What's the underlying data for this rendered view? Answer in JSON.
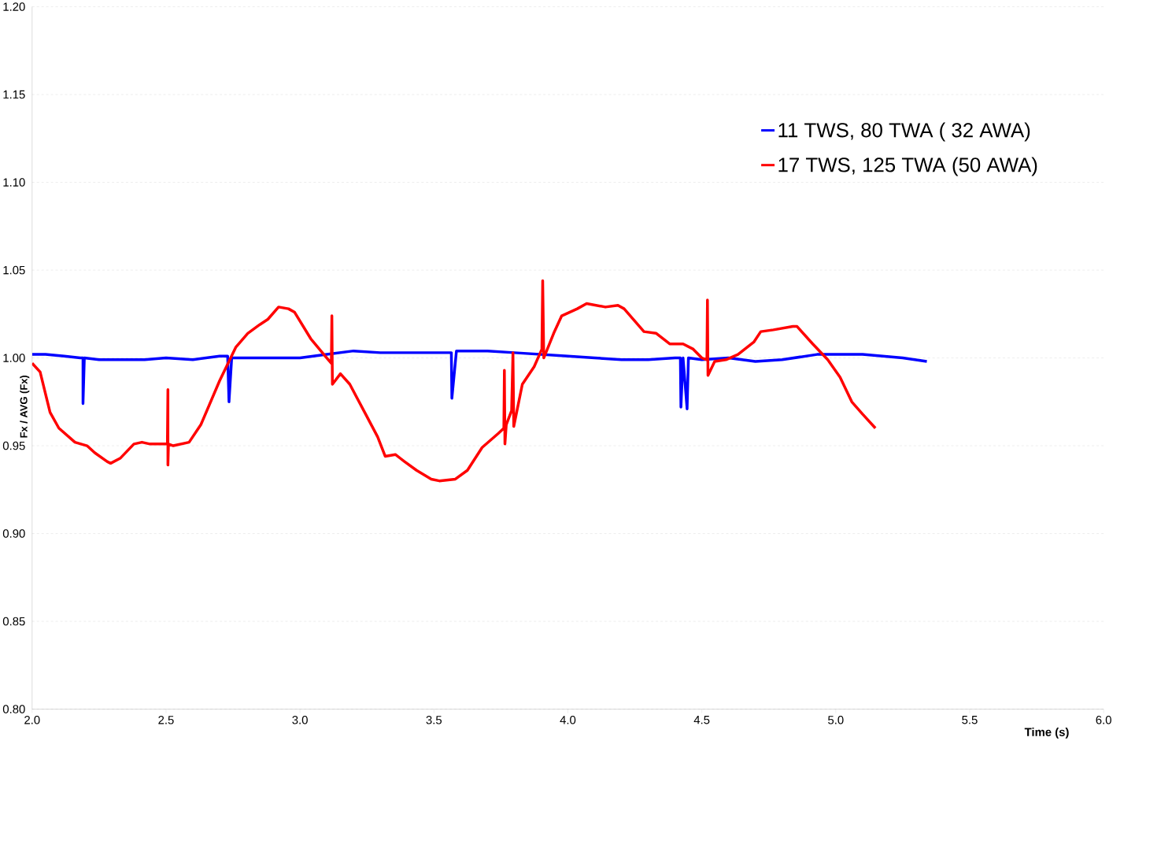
{
  "chart_data": {
    "type": "line",
    "xlabel": "Time (s)",
    "ylabel": "Fx / AVG (Fx)",
    "xlim": [
      2.0,
      6.0
    ],
    "ylim": [
      0.8,
      1.2
    ],
    "xticks": [
      {
        "value": 2.0,
        "label": "2.0"
      },
      {
        "value": 2.5,
        "label": "2.5"
      },
      {
        "value": 3.0,
        "label": "3.0"
      },
      {
        "value": 3.5,
        "label": "3.5"
      },
      {
        "value": 4.0,
        "label": "4.0"
      },
      {
        "value": 4.5,
        "label": "4.5"
      },
      {
        "value": 5.0,
        "label": "5.0"
      },
      {
        "value": 5.5,
        "label": "5.5"
      },
      {
        "value": 6.0,
        "label": "6.0"
      }
    ],
    "yticks": [
      {
        "value": 0.8,
        "label": "0.80"
      },
      {
        "value": 0.85,
        "label": "0.85"
      },
      {
        "value": 0.9,
        "label": "0.90"
      },
      {
        "value": 0.95,
        "label": "0.95"
      },
      {
        "value": 1.0,
        "label": "1.00"
      },
      {
        "value": 1.05,
        "label": "1.05"
      },
      {
        "value": 1.1,
        "label": "1.10"
      },
      {
        "value": 1.15,
        "label": "1.15"
      },
      {
        "value": 1.2,
        "label": "1.20"
      }
    ],
    "grid": "y",
    "legend": "top right",
    "marker": "none",
    "line_style": "solid",
    "series": [
      {
        "name": "11 TWS, 80 TWA ( 32 AWA)",
        "color": "#0000ff",
        "x": [
          2.0,
          2.05,
          2.12,
          2.18,
          2.19,
          2.19,
          2.195,
          2.25,
          2.35,
          2.42,
          2.5,
          2.6,
          2.7,
          2.73,
          2.735,
          2.745,
          2.85,
          3.0,
          3.1,
          3.2,
          3.3,
          3.5,
          3.565,
          3.567,
          3.584,
          3.7,
          3.8,
          4.0,
          4.1,
          4.2,
          4.3,
          4.4,
          4.42,
          4.422,
          4.43,
          4.445,
          4.45,
          4.5,
          4.6,
          4.7,
          4.8,
          4.93,
          5.1,
          5.25,
          5.34
        ],
        "values": [
          1.002,
          1.002,
          1.001,
          1.0,
          1.0,
          0.974,
          1.0,
          0.999,
          0.999,
          0.999,
          1.0,
          0.999,
          1.001,
          1.001,
          0.975,
          1.0,
          1.0,
          1.0,
          1.002,
          1.004,
          1.003,
          1.003,
          1.003,
          0.977,
          1.004,
          1.004,
          1.003,
          1.001,
          1.0,
          0.999,
          0.999,
          1.0,
          1.0,
          0.972,
          1.0,
          0.971,
          1.0,
          0.999,
          1.0,
          0.998,
          0.999,
          1.002,
          1.002,
          1.0,
          0.998
        ]
      },
      {
        "name": "17 TWS, 125 TWA (50 AWA)",
        "color": "#ff0000",
        "x": [
          2.0,
          2.03,
          2.067,
          2.1,
          2.13,
          2.16,
          2.205,
          2.234,
          2.28,
          2.293,
          2.33,
          2.38,
          2.41,
          2.44,
          2.48,
          2.505,
          2.507,
          2.507,
          2.509,
          2.527,
          2.586,
          2.63,
          2.7,
          2.76,
          2.805,
          2.85,
          2.88,
          2.92,
          2.957,
          2.98,
          3.04,
          3.1,
          3.117,
          3.119,
          3.121,
          3.151,
          3.186,
          3.245,
          3.29,
          3.318,
          3.356,
          3.39,
          3.435,
          3.49,
          3.52,
          3.58,
          3.625,
          3.68,
          3.74,
          3.761,
          3.763,
          3.765,
          3.77,
          3.79,
          3.795,
          3.798,
          3.83,
          3.874,
          3.903,
          3.906,
          3.91,
          3.947,
          3.977,
          4.035,
          4.07,
          4.14,
          4.187,
          4.21,
          4.284,
          4.33,
          4.38,
          4.43,
          4.468,
          4.5,
          4.519,
          4.521,
          4.523,
          4.548,
          4.59,
          4.635,
          4.694,
          4.72,
          4.767,
          4.84,
          4.855,
          4.914,
          4.97,
          5.016,
          5.06,
          5.1,
          5.148
        ],
        "values": [
          0.997,
          0.992,
          0.969,
          0.96,
          0.956,
          0.952,
          0.95,
          0.946,
          0.941,
          0.94,
          0.943,
          0.951,
          0.952,
          0.951,
          0.951,
          0.951,
          0.982,
          0.939,
          0.951,
          0.95,
          0.952,
          0.962,
          0.987,
          1.006,
          1.014,
          1.019,
          1.022,
          1.029,
          1.028,
          1.026,
          1.011,
          1.0,
          0.997,
          1.024,
          0.985,
          0.991,
          0.985,
          0.968,
          0.955,
          0.944,
          0.945,
          0.941,
          0.936,
          0.931,
          0.93,
          0.931,
          0.936,
          0.949,
          0.957,
          0.96,
          0.993,
          0.951,
          0.962,
          0.97,
          1.003,
          0.961,
          0.985,
          0.995,
          1.005,
          1.044,
          1.0,
          1.014,
          1.024,
          1.028,
          1.031,
          1.029,
          1.03,
          1.028,
          1.015,
          1.014,
          1.008,
          1.008,
          1.005,
          1.0,
          0.999,
          1.033,
          0.99,
          0.998,
          0.999,
          1.002,
          1.009,
          1.015,
          1.016,
          1.018,
          1.018,
          1.008,
          0.999,
          0.989,
          0.975,
          0.968,
          0.96
        ]
      }
    ]
  }
}
